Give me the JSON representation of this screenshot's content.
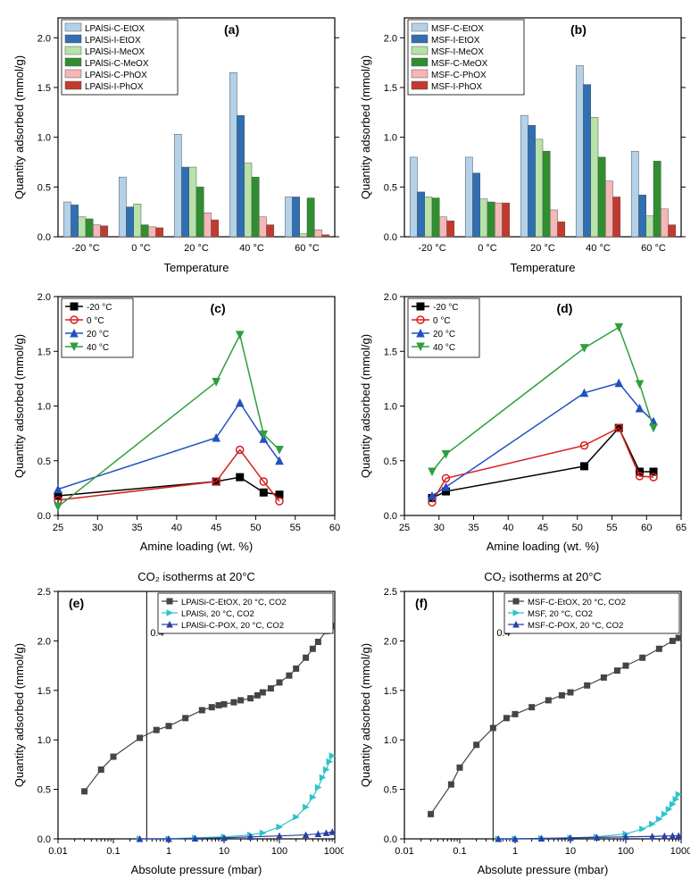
{
  "panel_a": {
    "type": "bar",
    "letter": "(a)",
    "categories": [
      "-20 °C",
      "0 °C",
      "20 °C",
      "40 °C",
      "60 °C"
    ],
    "series": [
      {
        "label": "LPAlSi-C-EtOX",
        "color": "#b3d1e8",
        "values": [
          0.35,
          0.6,
          1.03,
          1.65,
          0.4
        ]
      },
      {
        "label": "LPAlSi-I-EtOX",
        "color": "#2f6fb3",
        "values": [
          0.32,
          0.3,
          0.7,
          1.22,
          0.4
        ]
      },
      {
        "label": "LPAlSi-I-MeOX",
        "color": "#b7e2a8",
        "values": [
          0.2,
          0.33,
          0.7,
          0.74,
          0.03
        ]
      },
      {
        "label": "LPAlSi-C-MeOX",
        "color": "#2f8f2f",
        "values": [
          0.18,
          0.12,
          0.5,
          0.6,
          0.39
        ]
      },
      {
        "label": "LPAlSi-C-PhOX",
        "color": "#f5b7b7",
        "values": [
          0.12,
          0.1,
          0.24,
          0.2,
          0.07
        ]
      },
      {
        "label": "LPAlSi-I-PhOX",
        "color": "#c23a2d",
        "values": [
          0.11,
          0.09,
          0.17,
          0.12,
          0.02
        ]
      }
    ],
    "ylabel": "Quantity adsorbed (mmol/g)",
    "xlabel": "Temperature",
    "ylim": [
      0,
      2.2
    ],
    "ytick_step": 0.5
  },
  "panel_b": {
    "type": "bar",
    "letter": "(b)",
    "categories": [
      "-20 °C",
      "0 °C",
      "20 °C",
      "40 °C",
      "60 °C"
    ],
    "series": [
      {
        "label": "MSF-C-EtOX",
        "color": "#b3d1e8",
        "values": [
          0.8,
          0.8,
          1.22,
          1.72,
          0.86
        ]
      },
      {
        "label": "MSF-I-EtOX",
        "color": "#2f6fb3",
        "values": [
          0.45,
          0.64,
          1.12,
          1.53,
          0.42
        ]
      },
      {
        "label": "MSF-I-MeOX",
        "color": "#b7e2a8",
        "values": [
          0.4,
          0.38,
          0.98,
          1.2,
          0.21
        ]
      },
      {
        "label": "MSF-C-MeOX",
        "color": "#2f8f2f",
        "values": [
          0.39,
          0.35,
          0.86,
          0.8,
          0.76
        ]
      },
      {
        "label": "MSF-C-PhOX",
        "color": "#f5b7b7",
        "values": [
          0.2,
          0.34,
          0.27,
          0.56,
          0.28
        ]
      },
      {
        "label": "MSF-I-PhOX",
        "color": "#c23a2d",
        "values": [
          0.16,
          0.34,
          0.15,
          0.4,
          0.12
        ]
      }
    ],
    "ylabel": "Quantity adsorbed (mmol/g)",
    "xlabel": "Temperature",
    "ylim": [
      0,
      2.2
    ],
    "ytick_step": 0.5
  },
  "panel_c": {
    "type": "line",
    "letter": "(c)",
    "series": [
      {
        "label": "-20 °C",
        "color": "#000000",
        "marker": "square",
        "x": [
          25,
          45,
          48,
          51,
          53
        ],
        "y": [
          0.18,
          0.31,
          0.35,
          0.21,
          0.19
        ]
      },
      {
        "label": "0 °C",
        "color": "#d81e1e",
        "marker": "circle",
        "x": [
          25,
          45,
          48,
          51,
          53
        ],
        "y": [
          0.14,
          0.31,
          0.6,
          0.31,
          0.13
        ]
      },
      {
        "label": "20 °C",
        "color": "#2250c4",
        "marker": "triangle",
        "x": [
          25,
          45,
          48,
          51,
          53
        ],
        "y": [
          0.24,
          0.71,
          1.03,
          0.7,
          0.5
        ]
      },
      {
        "label": "40 °C",
        "color": "#2e9f3e",
        "marker": "triangle-down",
        "x": [
          25,
          45,
          48,
          51,
          53
        ],
        "y": [
          0.08,
          1.22,
          1.65,
          0.74,
          0.6
        ]
      }
    ],
    "ylabel": "Quantity adsorbed (mmol/g)",
    "xlabel": "Amine loading (wt. %)",
    "xlim": [
      25,
      60
    ],
    "ylim": [
      0,
      2.0
    ],
    "ytick_step": 0.5,
    "xtick_step": 5
  },
  "panel_d": {
    "type": "line",
    "letter": "(d)",
    "series": [
      {
        "label": "-20 °C",
        "color": "#000000",
        "marker": "square",
        "x": [
          29,
          31,
          51,
          56,
          59,
          61
        ],
        "y": [
          0.16,
          0.22,
          0.45,
          0.8,
          0.4,
          0.4
        ]
      },
      {
        "label": "0 °C",
        "color": "#d81e1e",
        "marker": "circle",
        "x": [
          29,
          31,
          51,
          56,
          59,
          61
        ],
        "y": [
          0.12,
          0.34,
          0.64,
          0.8,
          0.36,
          0.35
        ]
      },
      {
        "label": "20 °C",
        "color": "#2250c4",
        "marker": "triangle",
        "x": [
          29,
          31,
          51,
          56,
          59,
          61
        ],
        "y": [
          0.18,
          0.26,
          1.12,
          1.21,
          0.98,
          0.86
        ]
      },
      {
        "label": "40 °C",
        "color": "#2e9f3e",
        "marker": "triangle-down",
        "x": [
          29,
          31,
          51,
          56,
          59,
          61
        ],
        "y": [
          0.4,
          0.56,
          1.53,
          1.72,
          1.2,
          0.8
        ]
      }
    ],
    "ylabel": "Quantity adsorbed (mmol/g)",
    "xlabel": "Amine loading (wt. %)",
    "xlim": [
      25,
      65
    ],
    "ylim": [
      0,
      2.0
    ],
    "ytick_step": 0.5,
    "xtick_step": 5
  },
  "panel_e": {
    "type": "semilogx",
    "letter": "(e)",
    "title": "CO₂ isotherms at 20°C",
    "vline": 0.4,
    "vline_label": "0.4",
    "series": [
      {
        "label": "LPAlSi-C-EtOX, 20 °C, CO2",
        "color": "#454545",
        "marker": "square",
        "x": [
          0.03,
          0.06,
          0.1,
          0.3,
          0.6,
          1,
          2,
          4,
          6,
          8,
          10,
          15,
          20,
          30,
          40,
          50,
          70,
          100,
          150,
          200,
          300,
          400,
          500,
          700,
          900
        ],
        "y": [
          0.48,
          0.7,
          0.83,
          1.02,
          1.1,
          1.14,
          1.22,
          1.3,
          1.33,
          1.35,
          1.36,
          1.38,
          1.4,
          1.42,
          1.45,
          1.48,
          1.52,
          1.58,
          1.65,
          1.72,
          1.83,
          1.92,
          1.99,
          2.1,
          2.15
        ]
      },
      {
        "label": "LPAlSi, 20 °C, CO2",
        "color": "#2cc3c9",
        "marker": "triangle-right",
        "x": [
          0.3,
          1,
          3,
          10,
          30,
          50,
          100,
          200,
          300,
          400,
          500,
          600,
          700,
          800,
          900
        ],
        "y": [
          0.0,
          0.0,
          0.01,
          0.02,
          0.04,
          0.06,
          0.12,
          0.22,
          0.32,
          0.42,
          0.52,
          0.62,
          0.7,
          0.78,
          0.84
        ]
      },
      {
        "label": "LPAlSi-C-POX, 20 °C, CO2",
        "color": "#2b3fa7",
        "marker": "triangle",
        "x": [
          0.3,
          1,
          3,
          10,
          30,
          100,
          300,
          500,
          700,
          900
        ],
        "y": [
          0.0,
          0.0,
          0.005,
          0.01,
          0.02,
          0.03,
          0.04,
          0.05,
          0.06,
          0.07
        ]
      }
    ],
    "ylabel": "Quantity adsorbed (mmol/g)",
    "xlabel": "Absolute pressure (mbar)",
    "xlim": [
      0.01,
      1000
    ],
    "ylim": [
      0,
      2.5
    ],
    "ytick_step": 0.5
  },
  "panel_f": {
    "type": "semilogx",
    "letter": "(f)",
    "title": "CO₂ isotherms at 20°C",
    "vline": 0.4,
    "vline_label": "0.4",
    "series": [
      {
        "label": "MSF-C-EtOX, 20 °C, CO2",
        "color": "#454545",
        "marker": "square",
        "x": [
          0.03,
          0.07,
          0.1,
          0.2,
          0.4,
          0.7,
          1,
          2,
          4,
          7,
          10,
          20,
          40,
          70,
          100,
          200,
          400,
          700,
          900
        ],
        "y": [
          0.25,
          0.55,
          0.72,
          0.95,
          1.12,
          1.22,
          1.26,
          1.33,
          1.4,
          1.45,
          1.48,
          1.55,
          1.63,
          1.7,
          1.75,
          1.83,
          1.92,
          2.0,
          2.03
        ]
      },
      {
        "label": "MSF, 20 °C, CO2",
        "color": "#2cc3c9",
        "marker": "triangle-right",
        "x": [
          0.5,
          1,
          3,
          10,
          30,
          100,
          200,
          300,
          400,
          500,
          600,
          700,
          800,
          900
        ],
        "y": [
          0.0,
          0.0,
          0.005,
          0.01,
          0.02,
          0.05,
          0.1,
          0.15,
          0.2,
          0.25,
          0.3,
          0.35,
          0.4,
          0.45
        ]
      },
      {
        "label": "MSF-C-POX, 20 °C, CO2",
        "color": "#2b3fa7",
        "marker": "triangle",
        "x": [
          0.5,
          1,
          3,
          10,
          30,
          100,
          300,
          500,
          700,
          900
        ],
        "y": [
          0.0,
          0.0,
          0.005,
          0.01,
          0.015,
          0.02,
          0.025,
          0.028,
          0.03,
          0.032
        ]
      }
    ],
    "ylabel": "Quantity adsorbed (mmol/g)",
    "xlabel": "Absolute pressure (mbar)",
    "xlim": [
      0.01,
      1000
    ],
    "ylim": [
      0,
      2.5
    ],
    "ytick_step": 0.5
  },
  "style": {
    "axis_color": "#000000",
    "tick_font": 11,
    "label_font": 13,
    "border_color": "#000000",
    "legend_bg": "#ffffff",
    "legend_border": "#000000"
  }
}
